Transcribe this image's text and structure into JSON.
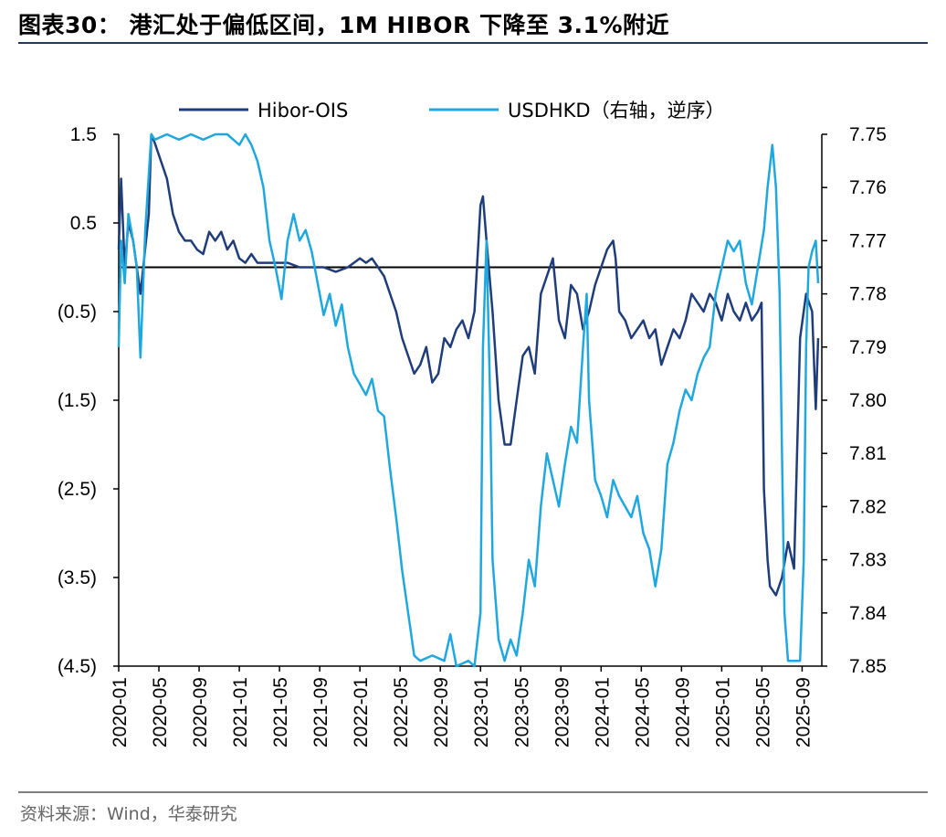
{
  "header": {
    "title": "图表30：  港汇处于偏低区间，1M HIBOR 下降至 3.1%附近"
  },
  "footer": {
    "source": "资料来源：Wind，华泰研究"
  },
  "chart_data": {
    "type": "line",
    "title": "港汇处于偏低区间，1M HIBOR 下降至 3.1%附近",
    "legend_position": "top-center",
    "x_tick_labels": [
      "2020-01",
      "2020-05",
      "2020-09",
      "2021-01",
      "2021-05",
      "2021-09",
      "2022-01",
      "2022-05",
      "2022-09",
      "2023-01",
      "2023-05",
      "2023-09",
      "2024-01",
      "2024-05",
      "2024-09",
      "2025-01",
      "2025-05",
      "2025-09"
    ],
    "left_axis": {
      "range": [
        -4.5,
        1.5
      ],
      "ticks": [
        "1.5",
        "0.5",
        "(0.5)",
        "(1.5)",
        "(2.5)",
        "(3.5)",
        "(4.5)"
      ]
    },
    "right_axis": {
      "range": [
        7.75,
        7.85
      ],
      "reversed": true,
      "ticks": [
        "7.75",
        "7.76",
        "7.77",
        "7.78",
        "7.79",
        "7.80",
        "7.81",
        "7.82",
        "7.83",
        "7.84",
        "7.85"
      ]
    },
    "series": [
      {
        "name": "Hibor-OIS",
        "axis": "left",
        "color": "#1f3d7a",
        "points": [
          [
            2020.0,
            0.2
          ],
          [
            2020.02,
            1.0
          ],
          [
            2020.05,
            0.0
          ],
          [
            2020.08,
            0.5
          ],
          [
            2020.12,
            0.3
          ],
          [
            2020.18,
            -0.3
          ],
          [
            2020.25,
            0.6
          ],
          [
            2020.27,
            1.5
          ],
          [
            2020.3,
            1.4
          ],
          [
            2020.35,
            1.2
          ],
          [
            2020.4,
            1.0
          ],
          [
            2020.45,
            0.6
          ],
          [
            2020.5,
            0.4
          ],
          [
            2020.55,
            0.3
          ],
          [
            2020.6,
            0.3
          ],
          [
            2020.65,
            0.2
          ],
          [
            2020.7,
            0.15
          ],
          [
            2020.75,
            0.4
          ],
          [
            2020.8,
            0.3
          ],
          [
            2020.85,
            0.4
          ],
          [
            2020.9,
            0.2
          ],
          [
            2020.95,
            0.3
          ],
          [
            2021.0,
            0.1
          ],
          [
            2021.05,
            0.05
          ],
          [
            2021.1,
            0.15
          ],
          [
            2021.15,
            0.05
          ],
          [
            2021.2,
            0.05
          ],
          [
            2021.3,
            0.05
          ],
          [
            2021.4,
            0.05
          ],
          [
            2021.5,
            0.0
          ],
          [
            2021.6,
            0.0
          ],
          [
            2021.7,
            0.0
          ],
          [
            2021.8,
            -0.05
          ],
          [
            2021.9,
            0.0
          ],
          [
            2022.0,
            0.1
          ],
          [
            2022.05,
            0.05
          ],
          [
            2022.1,
            0.1
          ],
          [
            2022.15,
            0.0
          ],
          [
            2022.2,
            -0.1
          ],
          [
            2022.25,
            -0.3
          ],
          [
            2022.3,
            -0.5
          ],
          [
            2022.35,
            -0.8
          ],
          [
            2022.4,
            -1.0
          ],
          [
            2022.45,
            -1.2
          ],
          [
            2022.5,
            -1.1
          ],
          [
            2022.55,
            -0.9
          ],
          [
            2022.6,
            -1.3
          ],
          [
            2022.65,
            -1.2
          ],
          [
            2022.7,
            -0.8
          ],
          [
            2022.75,
            -0.9
          ],
          [
            2022.8,
            -0.7
          ],
          [
            2022.85,
            -0.6
          ],
          [
            2022.9,
            -0.8
          ],
          [
            2022.95,
            -0.5
          ],
          [
            2023.0,
            0.7
          ],
          [
            2023.02,
            0.8
          ],
          [
            2023.05,
            0.3
          ],
          [
            2023.1,
            -0.5
          ],
          [
            2023.15,
            -1.5
          ],
          [
            2023.2,
            -2.0
          ],
          [
            2023.25,
            -2.0
          ],
          [
            2023.3,
            -1.5
          ],
          [
            2023.35,
            -1.0
          ],
          [
            2023.4,
            -0.9
          ],
          [
            2023.45,
            -1.2
          ],
          [
            2023.5,
            -0.3
          ],
          [
            2023.55,
            -0.1
          ],
          [
            2023.6,
            0.1
          ],
          [
            2023.65,
            -0.6
          ],
          [
            2023.7,
            -0.8
          ],
          [
            2023.75,
            -0.2
          ],
          [
            2023.8,
            -0.3
          ],
          [
            2023.85,
            -0.7
          ],
          [
            2023.9,
            -0.5
          ],
          [
            2023.95,
            -0.2
          ],
          [
            2024.0,
            0.0
          ],
          [
            2024.05,
            0.2
          ],
          [
            2024.1,
            0.3
          ],
          [
            2024.12,
            0.1
          ],
          [
            2024.15,
            -0.5
          ],
          [
            2024.2,
            -0.6
          ],
          [
            2024.25,
            -0.8
          ],
          [
            2024.3,
            -0.7
          ],
          [
            2024.35,
            -0.6
          ],
          [
            2024.4,
            -0.8
          ],
          [
            2024.45,
            -0.7
          ],
          [
            2024.5,
            -1.1
          ],
          [
            2024.55,
            -0.9
          ],
          [
            2024.6,
            -0.7
          ],
          [
            2024.65,
            -0.8
          ],
          [
            2024.7,
            -0.6
          ],
          [
            2024.75,
            -0.3
          ],
          [
            2024.8,
            -0.4
          ],
          [
            2024.85,
            -0.5
          ],
          [
            2024.9,
            -0.3
          ],
          [
            2024.95,
            -0.4
          ],
          [
            2025.0,
            -0.6
          ],
          [
            2025.05,
            -0.3
          ],
          [
            2025.1,
            -0.5
          ],
          [
            2025.15,
            -0.6
          ],
          [
            2025.2,
            -0.4
          ],
          [
            2025.25,
            -0.6
          ],
          [
            2025.3,
            -0.5
          ],
          [
            2025.33,
            -0.4
          ],
          [
            2025.35,
            -2.5
          ],
          [
            2025.38,
            -3.3
          ],
          [
            2025.4,
            -3.6
          ],
          [
            2025.45,
            -3.7
          ],
          [
            2025.5,
            -3.5
          ],
          [
            2025.55,
            -3.1
          ],
          [
            2025.6,
            -3.4
          ],
          [
            2025.65,
            -0.8
          ],
          [
            2025.7,
            -0.3
          ],
          [
            2025.75,
            -0.5
          ],
          [
            2025.78,
            -1.6
          ],
          [
            2025.8,
            -0.8
          ]
        ]
      },
      {
        "name": "USDHKD（右轴，逆序）",
        "axis": "right",
        "color": "#1fa8e0",
        "points": [
          [
            2020.0,
            7.79
          ],
          [
            2020.02,
            7.77
          ],
          [
            2020.05,
            7.778
          ],
          [
            2020.08,
            7.765
          ],
          [
            2020.12,
            7.77
          ],
          [
            2020.15,
            7.775
          ],
          [
            2020.18,
            7.792
          ],
          [
            2020.22,
            7.768
          ],
          [
            2020.27,
            7.75
          ],
          [
            2020.3,
            7.751
          ],
          [
            2020.4,
            7.75
          ],
          [
            2020.5,
            7.751
          ],
          [
            2020.6,
            7.75
          ],
          [
            2020.7,
            7.751
          ],
          [
            2020.8,
            7.75
          ],
          [
            2020.9,
            7.75
          ],
          [
            2021.0,
            7.752
          ],
          [
            2021.05,
            7.75
          ],
          [
            2021.1,
            7.752
          ],
          [
            2021.15,
            7.755
          ],
          [
            2021.2,
            7.76
          ],
          [
            2021.25,
            7.77
          ],
          [
            2021.3,
            7.775
          ],
          [
            2021.35,
            7.781
          ],
          [
            2021.4,
            7.77
          ],
          [
            2021.45,
            7.765
          ],
          [
            2021.5,
            7.77
          ],
          [
            2021.55,
            7.768
          ],
          [
            2021.6,
            7.772
          ],
          [
            2021.65,
            7.778
          ],
          [
            2021.7,
            7.784
          ],
          [
            2021.75,
            7.78
          ],
          [
            2021.8,
            7.786
          ],
          [
            2021.85,
            7.782
          ],
          [
            2021.9,
            7.79
          ],
          [
            2021.95,
            7.795
          ],
          [
            2022.0,
            7.797
          ],
          [
            2022.05,
            7.799
          ],
          [
            2022.1,
            7.796
          ],
          [
            2022.15,
            7.802
          ],
          [
            2022.2,
            7.803
          ],
          [
            2022.25,
            7.813
          ],
          [
            2022.3,
            7.822
          ],
          [
            2022.35,
            7.832
          ],
          [
            2022.4,
            7.84
          ],
          [
            2022.45,
            7.848
          ],
          [
            2022.5,
            7.849
          ],
          [
            2022.6,
            7.848
          ],
          [
            2022.7,
            7.849
          ],
          [
            2022.75,
            7.844
          ],
          [
            2022.8,
            7.85
          ],
          [
            2022.9,
            7.849
          ],
          [
            2022.95,
            7.85
          ],
          [
            2023.0,
            7.84
          ],
          [
            2023.02,
            7.79
          ],
          [
            2023.05,
            7.77
          ],
          [
            2023.08,
            7.8
          ],
          [
            2023.1,
            7.83
          ],
          [
            2023.15,
            7.845
          ],
          [
            2023.2,
            7.849
          ],
          [
            2023.25,
            7.845
          ],
          [
            2023.3,
            7.848
          ],
          [
            2023.35,
            7.84
          ],
          [
            2023.4,
            7.83
          ],
          [
            2023.45,
            7.835
          ],
          [
            2023.5,
            7.82
          ],
          [
            2023.55,
            7.81
          ],
          [
            2023.6,
            7.815
          ],
          [
            2023.65,
            7.82
          ],
          [
            2023.7,
            7.812
          ],
          [
            2023.75,
            7.805
          ],
          [
            2023.8,
            7.808
          ],
          [
            2023.85,
            7.79
          ],
          [
            2023.88,
            7.78
          ],
          [
            2023.9,
            7.8
          ],
          [
            2023.95,
            7.815
          ],
          [
            2024.0,
            7.818
          ],
          [
            2024.05,
            7.822
          ],
          [
            2024.1,
            7.815
          ],
          [
            2024.15,
            7.818
          ],
          [
            2024.2,
            7.82
          ],
          [
            2024.25,
            7.822
          ],
          [
            2024.3,
            7.818
          ],
          [
            2024.35,
            7.825
          ],
          [
            2024.4,
            7.828
          ],
          [
            2024.45,
            7.835
          ],
          [
            2024.5,
            7.828
          ],
          [
            2024.55,
            7.812
          ],
          [
            2024.6,
            7.808
          ],
          [
            2024.65,
            7.802
          ],
          [
            2024.7,
            7.798
          ],
          [
            2024.75,
            7.8
          ],
          [
            2024.8,
            7.795
          ],
          [
            2024.85,
            7.792
          ],
          [
            2024.9,
            7.79
          ],
          [
            2024.95,
            7.78
          ],
          [
            2025.0,
            7.775
          ],
          [
            2025.05,
            7.77
          ],
          [
            2025.1,
            7.772
          ],
          [
            2025.15,
            7.77
          ],
          [
            2025.2,
            7.778
          ],
          [
            2025.25,
            7.782
          ],
          [
            2025.3,
            7.775
          ],
          [
            2025.35,
            7.768
          ],
          [
            2025.38,
            7.76
          ],
          [
            2025.4,
            7.756
          ],
          [
            2025.42,
            7.752
          ],
          [
            2025.45,
            7.76
          ],
          [
            2025.48,
            7.78
          ],
          [
            2025.5,
            7.81
          ],
          [
            2025.52,
            7.84
          ],
          [
            2025.55,
            7.849
          ],
          [
            2025.6,
            7.849
          ],
          [
            2025.65,
            7.849
          ],
          [
            2025.68,
            7.83
          ],
          [
            2025.7,
            7.79
          ],
          [
            2025.72,
            7.775
          ],
          [
            2025.75,
            7.772
          ],
          [
            2025.78,
            7.77
          ],
          [
            2025.8,
            7.778
          ]
        ]
      }
    ]
  }
}
